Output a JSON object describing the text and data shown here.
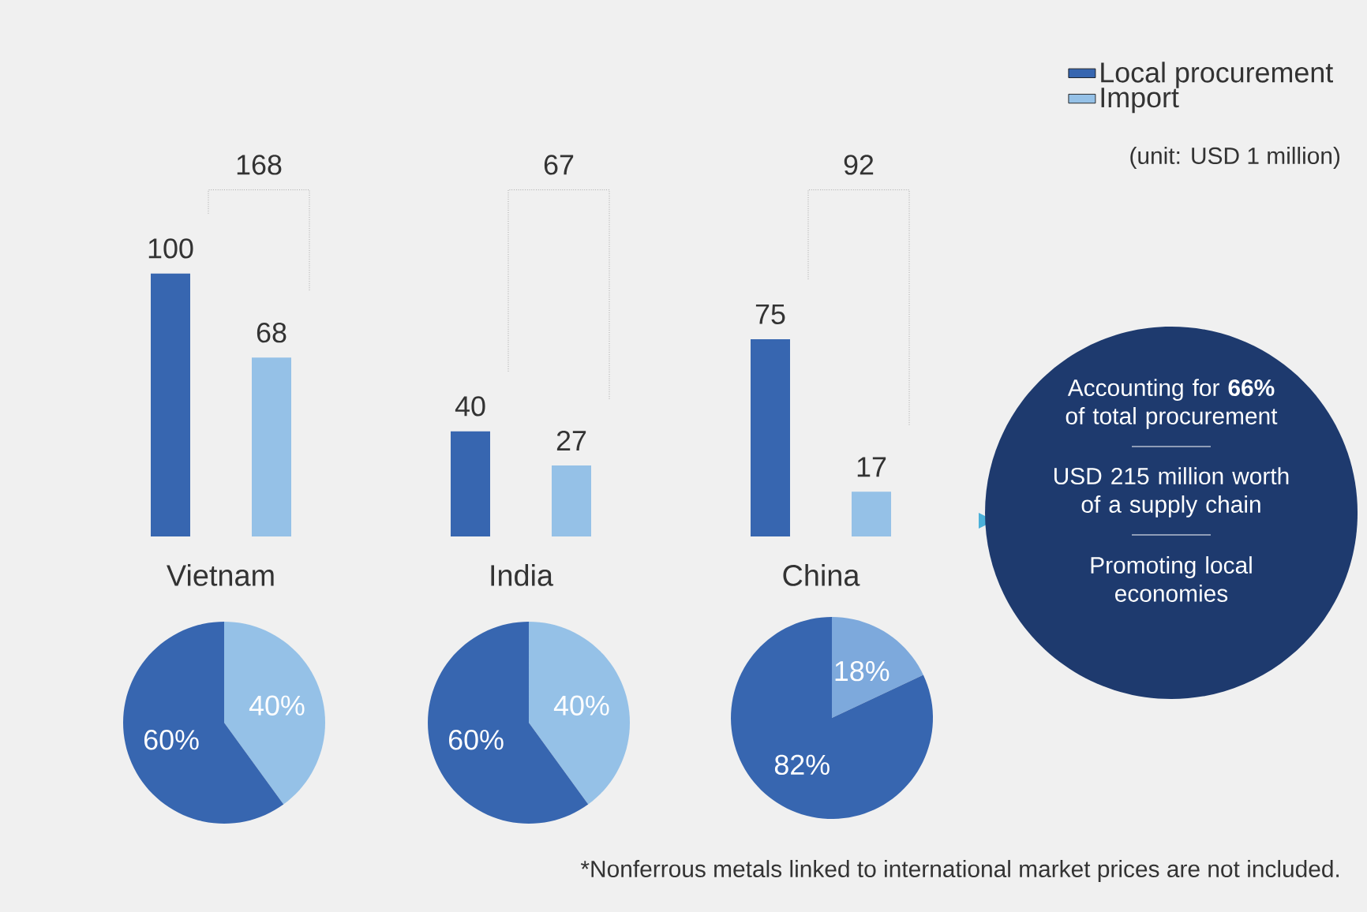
{
  "chart_data": [
    {
      "type": "bar",
      "categories": [
        "Vietnam",
        "India",
        "China"
      ],
      "series": [
        {
          "name": "Local procurement",
          "color": "#3766b0",
          "values": [
            100,
            40,
            75
          ]
        },
        {
          "name": "Import",
          "color": "#95c1e7",
          "values": [
            68,
            27,
            17
          ]
        }
      ],
      "data_labels": true,
      "legend": "top right",
      "annotations": [
        "(unit: USD 1 million)",
        "*Nonferrous metals linked to international market prices are not included.",
        "168",
        "67",
        "92"
      ]
    },
    {
      "type": "pie",
      "categories": [
        null,
        null
      ],
      "values": [
        40,
        60
      ],
      "colors": [
        "#95c1e7",
        "#3766b0"
      ],
      "value_labels": [
        "40%",
        "60%"
      ]
    },
    {
      "type": "pie",
      "categories": [
        null,
        null
      ],
      "values": [
        40,
        60
      ],
      "colors": [
        "#95c1e7",
        "#3766b0"
      ],
      "value_labels": [
        "40%",
        "60%"
      ]
    },
    {
      "type": "pie",
      "categories": [
        null,
        null
      ],
      "values": [
        18,
        82
      ],
      "colors": [
        "#7da9dc",
        "#3766b0"
      ],
      "value_labels": [
        "18%",
        "82%"
      ]
    },
    {
      "type": "other",
      "annotations": [
        "Accounting for **66%** of total procurement",
        "USD 215 million worth of a supply chain",
        "Promoting local economies"
      ]
    }
  ]
}
